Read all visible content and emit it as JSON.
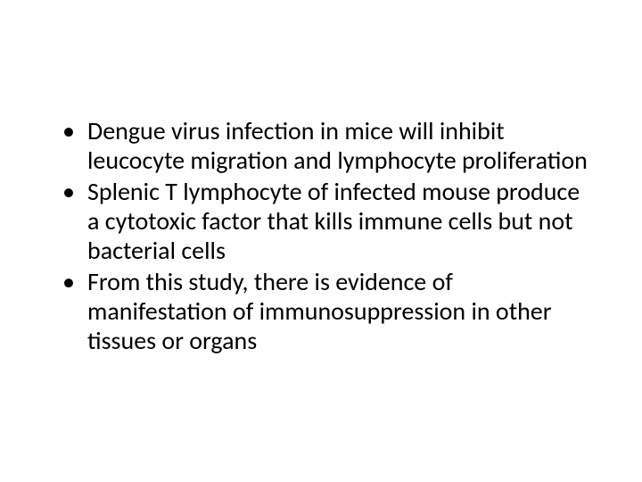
{
  "slide": {
    "background_color": "#ffffff",
    "text_color": "#000000",
    "font_family": "Calibri",
    "bullet_fontsize": 28,
    "bullets": [
      "Dengue virus infection in mice will inhibit leucocyte migration and lymphocyte proliferation",
      "Splenic T lymphocyte of infected mouse produce a cytotoxic factor that kills immune cells but not bacterial cells",
      "From this study, there is evidence of manifestation of immunosuppression in other tissues or organs"
    ]
  }
}
